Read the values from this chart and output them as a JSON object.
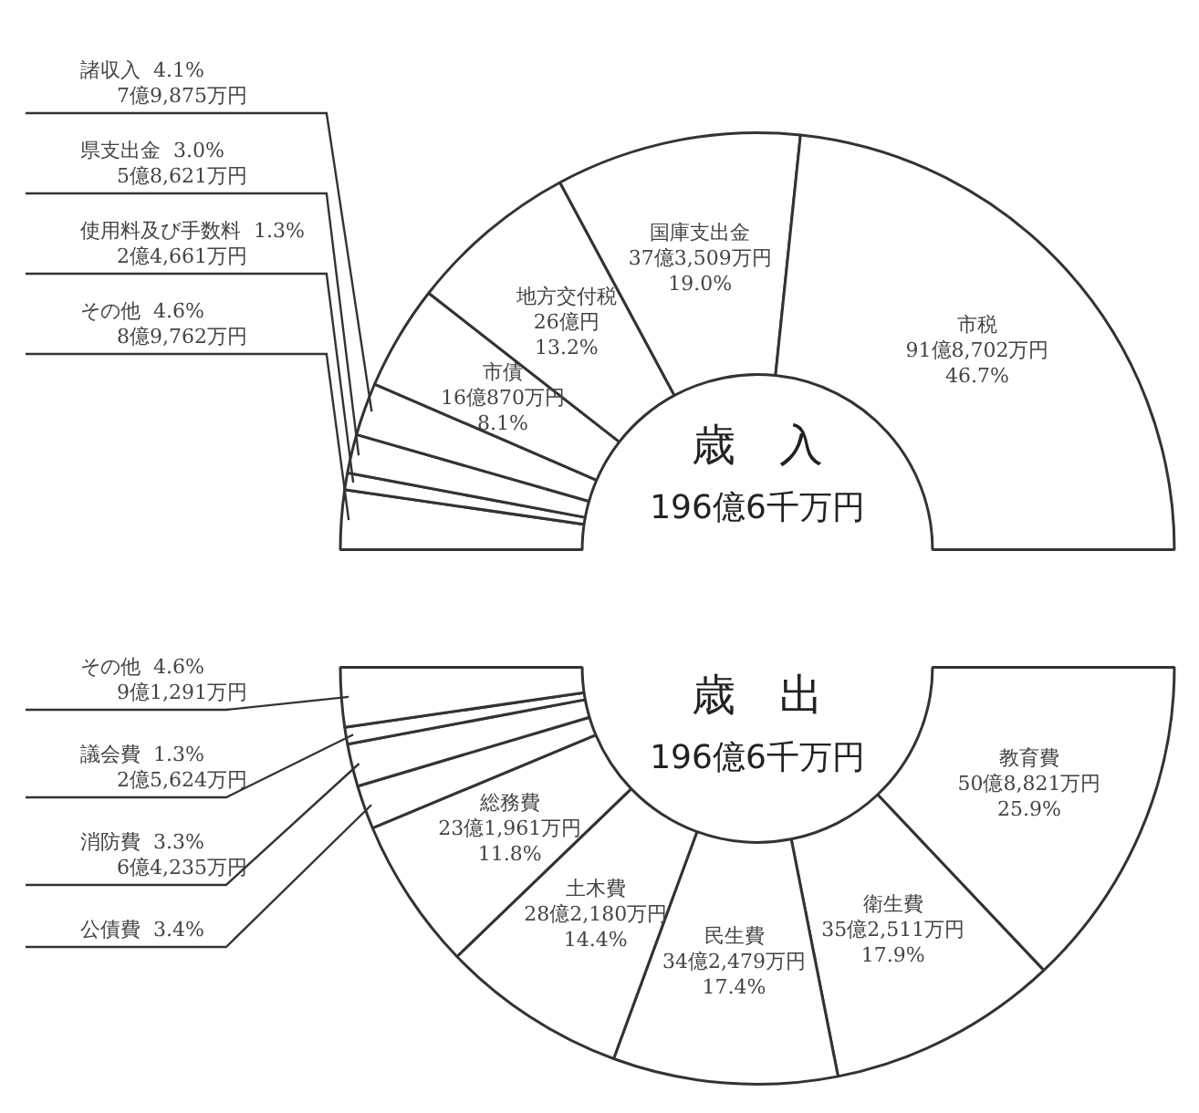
{
  "chart_data": [
    {
      "type": "donut",
      "title": "歳　入",
      "subtitle": "196億6千万円",
      "categories": [
        "その他",
        "使用料及び手数料",
        "県支出金",
        "諸収入",
        "市債",
        "地方交付税",
        "国庫支出金",
        "市税"
      ],
      "values": [
        4.6,
        1.3,
        3.0,
        4.1,
        8.1,
        13.2,
        19.0,
        46.7
      ],
      "colors": [
        "#ffffff",
        "#ffffff",
        "#ffffff",
        "#ffffff",
        "#ffffff",
        "#ffffff",
        "#ffffff",
        "#ffffff"
      ],
      "value_labels": [
        "4.6%\n8億9,762万円",
        "1.3%\n2億4,661万円",
        "3.0%\n5億8,621万円",
        "4.1%\n7億9,875万円",
        "16億870万円\n8.1%",
        "26億円\n13.2%",
        "37億3,509万円\n19.0%",
        "91億8,702万円\n46.7%"
      ]
    },
    {
      "type": "donut",
      "title": "歳　出",
      "subtitle": "196億6千万円",
      "categories": [
        "教育費",
        "衛生費",
        "民生費",
        "土木費",
        "総務費",
        "公債費",
        "消防費",
        "議会費",
        "その他"
      ],
      "values": [
        25.9,
        17.9,
        17.4,
        14.4,
        11.8,
        3.4,
        3.3,
        1.3,
        4.6
      ],
      "colors": [
        "#ffffff",
        "#ffffff",
        "#ffffff",
        "#ffffff",
        "#ffffff",
        "#ffffff",
        "#ffffff",
        "#ffffff",
        "#ffffff"
      ],
      "value_labels": [
        "50億8,821万円\n25.9%",
        "35億2,511万円\n17.9%",
        "34億2,479万円\n17.4%",
        "28億2,180万円\n14.4%",
        "23億1,961万円\n11.8%",
        "3.4%",
        "3.3%\n6億4,235万円",
        "1.3%\n2億5,624万円",
        "4.6%\n9億1,291万円"
      ]
    }
  ]
}
